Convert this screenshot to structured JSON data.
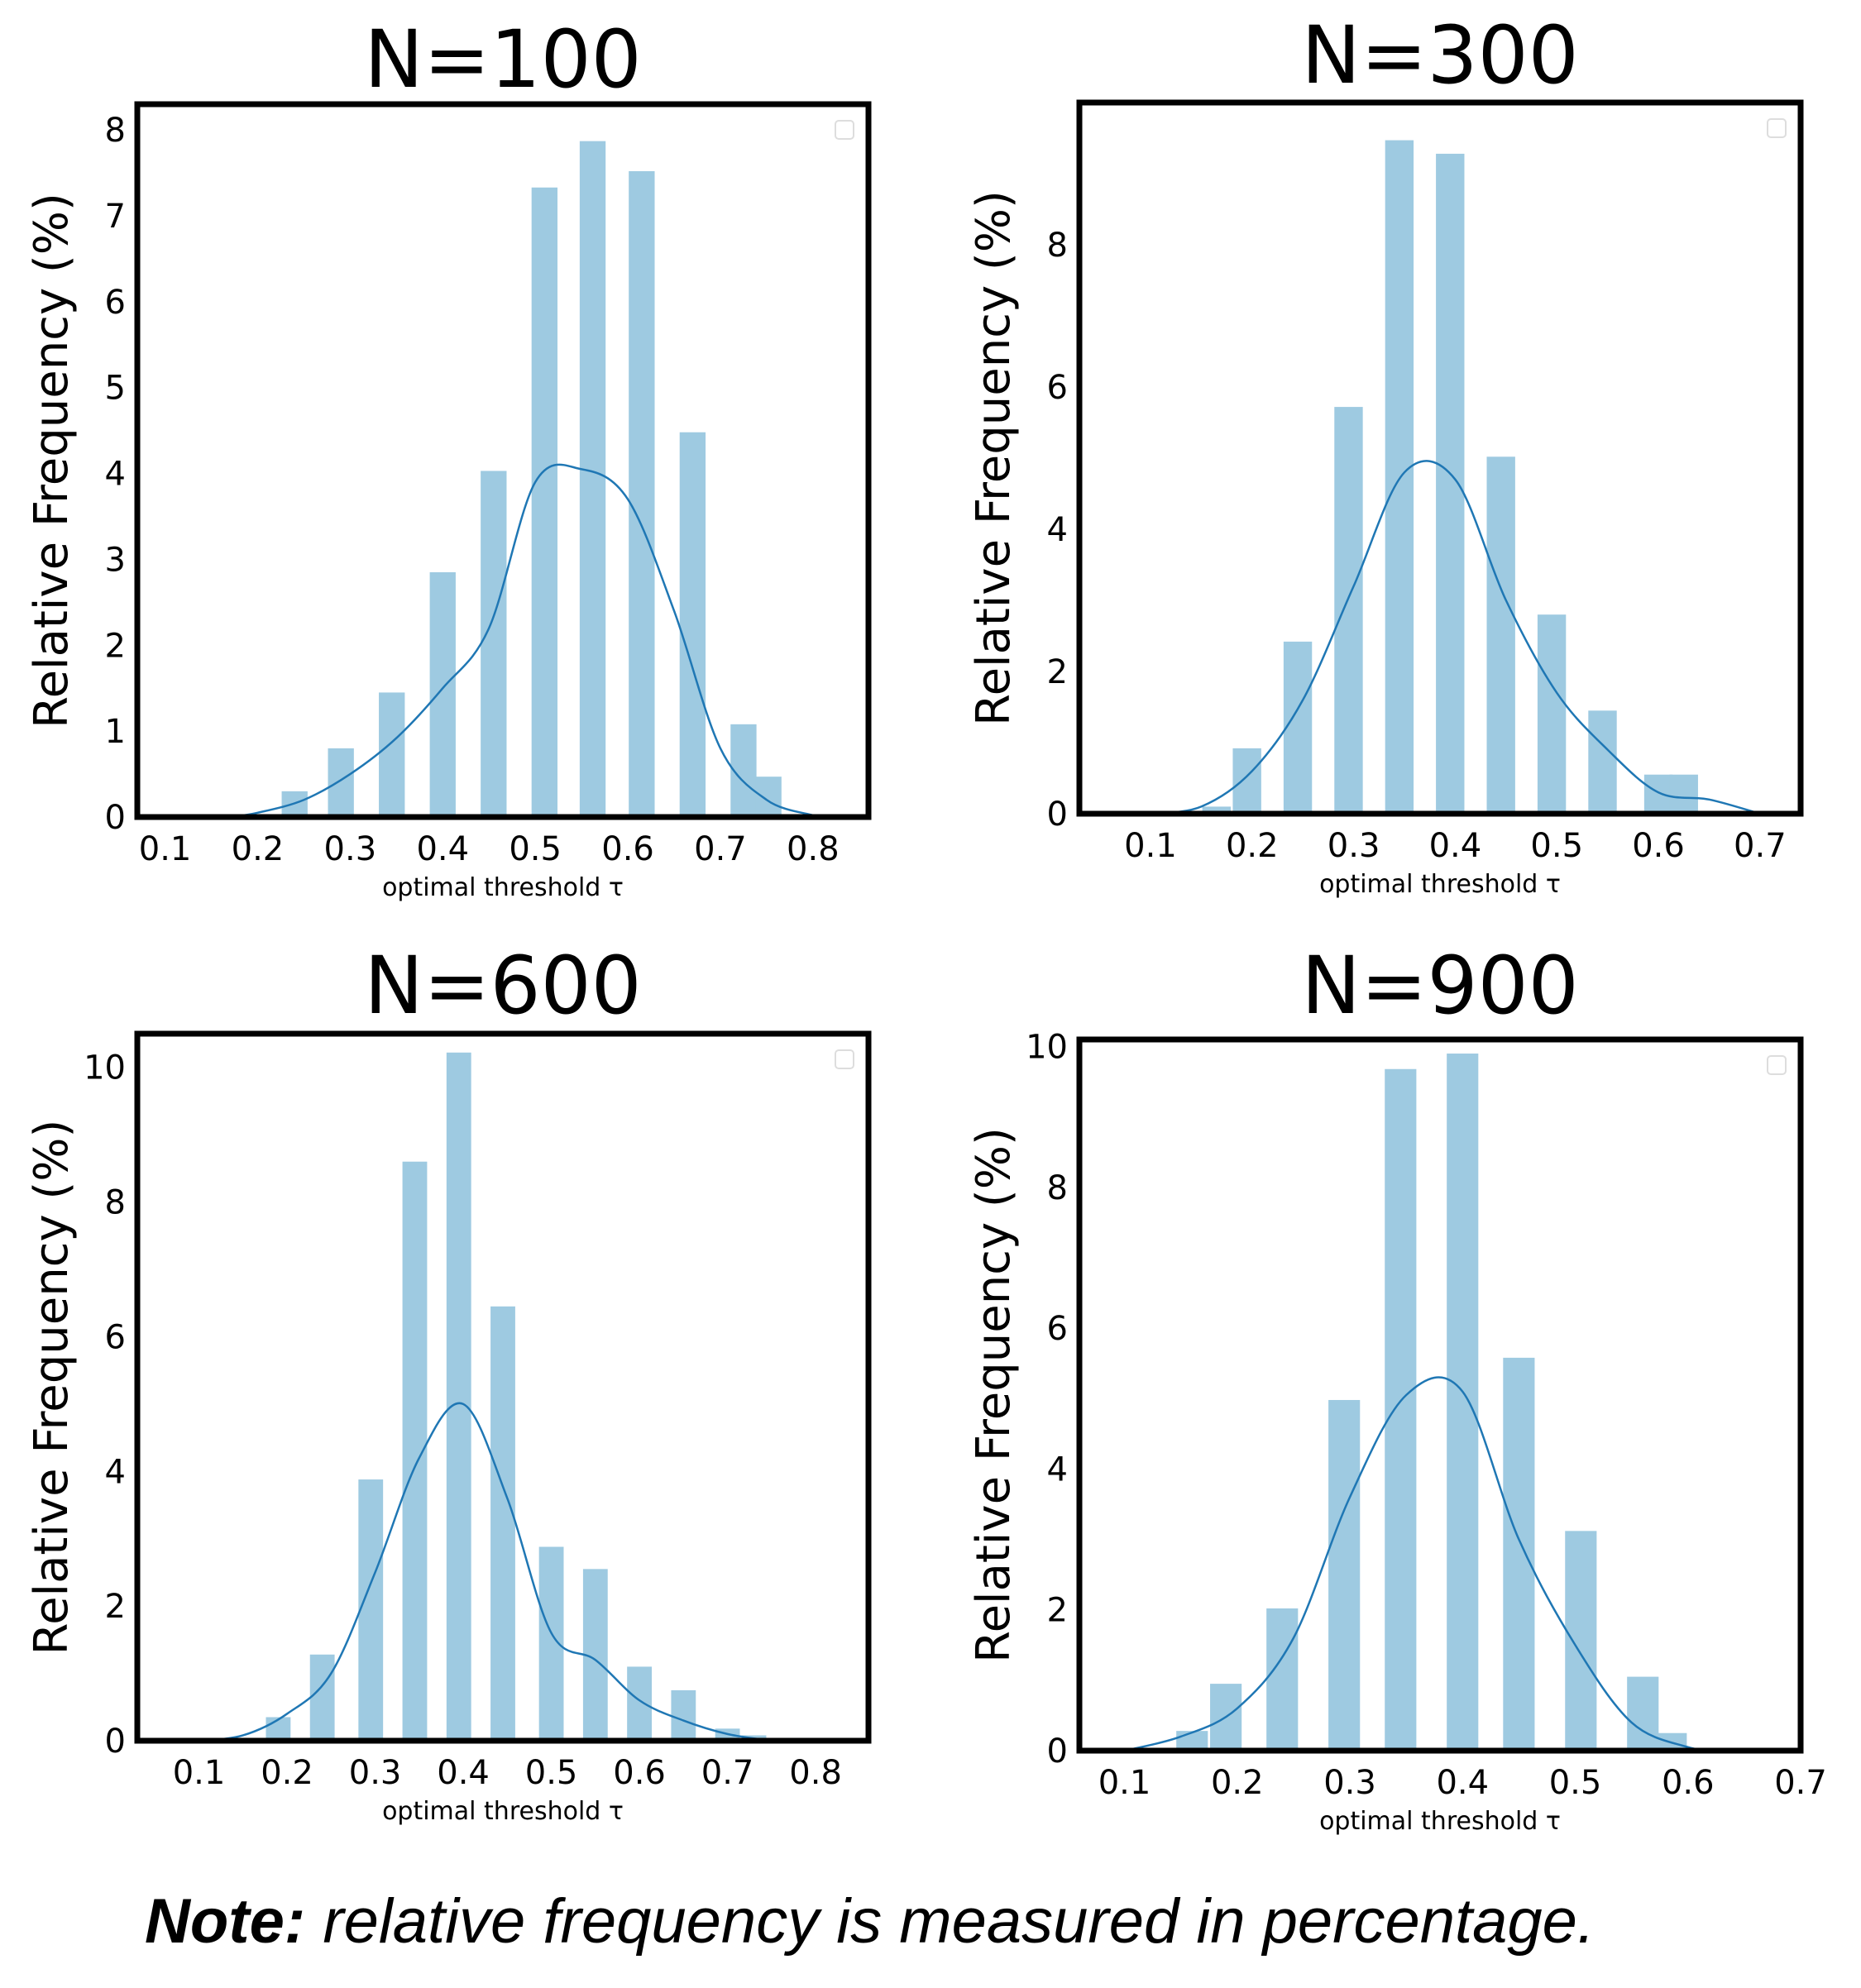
{
  "chart_data": [
    {
      "type": "bar",
      "title": "N=100",
      "xlabel": "optimal threshold τ",
      "ylabel": "Relative Frequency (%)",
      "xlim": [
        0.07,
        0.86
      ],
      "ylim": [
        0,
        8.3
      ],
      "xticks": [
        "0.1",
        "0.2",
        "0.3",
        "0.4",
        "0.5",
        "0.6",
        "0.7",
        "0.8"
      ],
      "xtick_values": [
        0.1,
        0.2,
        0.3,
        0.4,
        0.5,
        0.6,
        0.7,
        0.8
      ],
      "yticks": [
        "0",
        "1",
        "2",
        "3",
        "4",
        "5",
        "6",
        "7",
        "8"
      ],
      "ytick_values": [
        0,
        1,
        2,
        3,
        4,
        5,
        6,
        7,
        8
      ],
      "bar_width": 0.028,
      "bars": [
        {
          "x": 0.24,
          "value": 0.3
        },
        {
          "x": 0.29,
          "value": 0.8
        },
        {
          "x": 0.345,
          "value": 1.45
        },
        {
          "x": 0.4,
          "value": 2.85
        },
        {
          "x": 0.455,
          "value": 4.03
        },
        {
          "x": 0.51,
          "value": 7.33
        },
        {
          "x": 0.562,
          "value": 7.87
        },
        {
          "x": 0.615,
          "value": 7.52
        },
        {
          "x": 0.67,
          "value": 4.48
        },
        {
          "x": 0.725,
          "value": 1.08
        },
        {
          "x": 0.752,
          "value": 0.47
        }
      ],
      "kde": [
        [
          0.17,
          0
        ],
        [
          0.2,
          0.05
        ],
        [
          0.25,
          0.2
        ],
        [
          0.3,
          0.5
        ],
        [
          0.35,
          0.92
        ],
        [
          0.4,
          1.5
        ],
        [
          0.45,
          2.2
        ],
        [
          0.5,
          3.9
        ],
        [
          0.55,
          4.05
        ],
        [
          0.6,
          3.7
        ],
        [
          0.65,
          2.4
        ],
        [
          0.7,
          0.8
        ],
        [
          0.75,
          0.2
        ],
        [
          0.8,
          0.02
        ]
      ]
    },
    {
      "type": "bar",
      "title": "N=300",
      "xlabel": "optimal threshold τ",
      "ylabel": "Relative Frequency (%)",
      "xlim": [
        0.03,
        0.74
      ],
      "ylim": [
        0,
        10
      ],
      "xticks": [
        "0.1",
        "0.2",
        "0.3",
        "0.4",
        "0.5",
        "0.6",
        "0.7"
      ],
      "xtick_values": [
        0.1,
        0.2,
        0.3,
        0.4,
        0.5,
        0.6,
        0.7
      ],
      "yticks": [
        "0",
        "2",
        "4",
        "6",
        "8"
      ],
      "ytick_values": [
        0,
        2,
        4,
        6,
        8
      ],
      "bar_width": 0.028,
      "bars": [
        {
          "x": 0.165,
          "value": 0.1
        },
        {
          "x": 0.195,
          "value": 0.92
        },
        {
          "x": 0.245,
          "value": 2.42
        },
        {
          "x": 0.295,
          "value": 5.72
        },
        {
          "x": 0.345,
          "value": 9.47
        },
        {
          "x": 0.395,
          "value": 9.28
        },
        {
          "x": 0.445,
          "value": 5.02
        },
        {
          "x": 0.495,
          "value": 2.8
        },
        {
          "x": 0.545,
          "value": 1.45
        },
        {
          "x": 0.6,
          "value": 0.55
        },
        {
          "x": 0.625,
          "value": 0.55
        }
      ],
      "kde": [
        [
          0.1,
          0
        ],
        [
          0.15,
          0.1
        ],
        [
          0.2,
          0.6
        ],
        [
          0.25,
          1.6
        ],
        [
          0.3,
          3.2
        ],
        [
          0.35,
          4.8
        ],
        [
          0.4,
          4.7
        ],
        [
          0.45,
          3.0
        ],
        [
          0.5,
          1.7
        ],
        [
          0.55,
          0.9
        ],
        [
          0.6,
          0.3
        ],
        [
          0.65,
          0.2
        ],
        [
          0.7,
          0
        ]
      ]
    },
    {
      "type": "bar",
      "title": "N=600",
      "xlabel": "optimal threshold τ",
      "ylabel": "Relative Frequency (%)",
      "xlim": [
        0.03,
        0.86
      ],
      "ylim": [
        0,
        10.5
      ],
      "xticks": [
        "0.1",
        "0.2",
        "0.3",
        "0.4",
        "0.5",
        "0.6",
        "0.7",
        "0.8"
      ],
      "xtick_values": [
        0.1,
        0.2,
        0.3,
        0.4,
        0.5,
        0.6,
        0.7,
        0.8
      ],
      "yticks": [
        "0",
        "2",
        "4",
        "6",
        "8",
        "10"
      ],
      "ytick_values": [
        0,
        2,
        4,
        6,
        8,
        10
      ],
      "bar_width": 0.028,
      "bars": [
        {
          "x": 0.19,
          "value": 0.35
        },
        {
          "x": 0.24,
          "value": 1.28
        },
        {
          "x": 0.295,
          "value": 3.88
        },
        {
          "x": 0.345,
          "value": 8.6
        },
        {
          "x": 0.395,
          "value": 10.22
        },
        {
          "x": 0.445,
          "value": 6.45
        },
        {
          "x": 0.5,
          "value": 2.88
        },
        {
          "x": 0.55,
          "value": 2.55
        },
        {
          "x": 0.6,
          "value": 1.1
        },
        {
          "x": 0.65,
          "value": 0.75
        },
        {
          "x": 0.7,
          "value": 0.18
        },
        {
          "x": 0.73,
          "value": 0.08
        }
      ],
      "kde": [
        [
          0.1,
          0
        ],
        [
          0.15,
          0.08
        ],
        [
          0.2,
          0.4
        ],
        [
          0.25,
          1.0
        ],
        [
          0.3,
          2.5
        ],
        [
          0.35,
          4.2
        ],
        [
          0.4,
          5.0
        ],
        [
          0.45,
          3.6
        ],
        [
          0.5,
          1.6
        ],
        [
          0.55,
          1.2
        ],
        [
          0.6,
          0.6
        ],
        [
          0.65,
          0.3
        ],
        [
          0.7,
          0.1
        ],
        [
          0.75,
          0
        ]
      ]
    },
    {
      "type": "bar",
      "title": "N=900",
      "xlabel": "optimal threshold τ",
      "ylabel": "Relative Frequency (%)",
      "xlim": [
        0.06,
        0.7
      ],
      "ylim": [
        0,
        10.1
      ],
      "xticks": [
        "0.1",
        "0.2",
        "0.3",
        "0.4",
        "0.5",
        "0.6",
        "0.7"
      ],
      "xtick_values": [
        0.1,
        0.2,
        0.3,
        0.4,
        0.5,
        0.6,
        0.7
      ],
      "yticks": [
        "0",
        "2",
        "4",
        "6",
        "8",
        "10"
      ],
      "ytick_values": [
        0,
        2,
        4,
        6,
        8,
        10
      ],
      "bar_width": 0.028,
      "bars": [
        {
          "x": 0.16,
          "value": 0.28
        },
        {
          "x": 0.19,
          "value": 0.95
        },
        {
          "x": 0.24,
          "value": 2.02
        },
        {
          "x": 0.295,
          "value": 4.98
        },
        {
          "x": 0.345,
          "value": 9.68
        },
        {
          "x": 0.4,
          "value": 9.9
        },
        {
          "x": 0.45,
          "value": 5.58
        },
        {
          "x": 0.505,
          "value": 3.12
        },
        {
          "x": 0.56,
          "value": 1.05
        },
        {
          "x": 0.585,
          "value": 0.25
        }
      ],
      "kde": [
        [
          0.1,
          0
        ],
        [
          0.15,
          0.2
        ],
        [
          0.2,
          0.6
        ],
        [
          0.25,
          1.6
        ],
        [
          0.3,
          3.6
        ],
        [
          0.35,
          5.05
        ],
        [
          0.4,
          5.1
        ],
        [
          0.45,
          3.0
        ],
        [
          0.5,
          1.5
        ],
        [
          0.55,
          0.4
        ],
        [
          0.6,
          0.05
        ],
        [
          0.63,
          0
        ]
      ]
    }
  ],
  "note": {
    "bold": "Note:",
    "text": " relative frequency is measured in percentage."
  },
  "colors": {
    "bar": "#9ecae1",
    "kde": "#1f77b4",
    "frame": "#000000"
  }
}
